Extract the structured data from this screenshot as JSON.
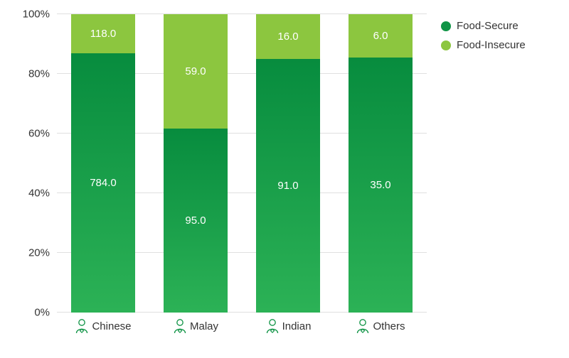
{
  "chart": {
    "type": "bar-stacked-100",
    "background_color": "#ffffff",
    "grid_color": "#e0e0e0",
    "text_color": "#333333",
    "bar_label_color": "#ffffff",
    "icon_stroke": "#109446",
    "bar_gradient": {
      "top": "#078c3e",
      "bottom": "#2cb256"
    },
    "ylim": [
      0,
      100
    ],
    "ytick_step": 20,
    "y_ticks": [
      {
        "value": 0,
        "label": "0%"
      },
      {
        "value": 20,
        "label": "20%"
      },
      {
        "value": 40,
        "label": "40%"
      },
      {
        "value": 60,
        "label": "60%"
      },
      {
        "value": 80,
        "label": "80%"
      },
      {
        "value": 100,
        "label": "100%"
      }
    ],
    "series": [
      {
        "key": "secure",
        "name": "Food-Secure",
        "color": "#109446"
      },
      {
        "key": "insecure",
        "name": "Food-Insecure",
        "color": "#8cc63f"
      }
    ],
    "categories": [
      {
        "label": "Chinese",
        "values": {
          "secure": 784.0,
          "insecure": 118.0
        }
      },
      {
        "label": "Malay",
        "values": {
          "secure": 95.0,
          "insecure": 59.0
        }
      },
      {
        "label": "Indian",
        "values": {
          "secure": 91.0,
          "insecure": 16.0
        }
      },
      {
        "label": "Others",
        "values": {
          "secure": 35.0,
          "insecure": 6.0
        }
      }
    ],
    "label_fontsize": 15
  }
}
